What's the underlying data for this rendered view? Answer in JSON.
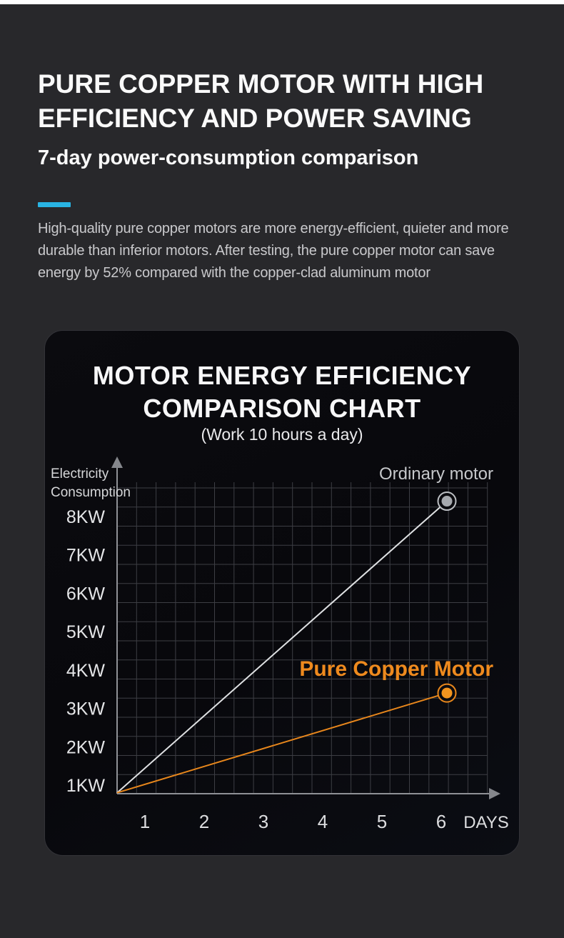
{
  "page": {
    "background_color": "#28282b",
    "top_strip_color": "#ffffff",
    "accent_color": "#29b4e3"
  },
  "header": {
    "title_line1": "PURE COPPER MOTOR WITH HIGH",
    "title_line2": "EFFICIENCY AND POWER SAVING",
    "subtitle": "7-day power-consumption comparison",
    "description_lines": [
      "High-quality pure copper motors are more energy-efficient, quieter and more",
      "durable than inferior motors. After testing, the pure copper motor can save",
      "energy by 52% compared with the copper-clad aluminum motor"
    ]
  },
  "chart_panel": {
    "title_line1": "MOTOR ENERGY EFFICIENCY",
    "title_line2": "COMPARISON CHART",
    "subtitle": "(Work 10 hours a day)",
    "background_color": "#0a0a0e"
  },
  "chart_data": {
    "type": "line",
    "title": "MOTOR ENERGY EFFICIENCY COMPARISON CHART",
    "subtitle": "(Work 10 hours a day)",
    "ylabel": "Electricity Consumption",
    "xlabel": "DAYS",
    "y_ticks": [
      "8KW",
      "7KW",
      "6KW",
      "5KW",
      "4KW",
      "3KW",
      "2KW",
      "1KW"
    ],
    "x_ticks": [
      "1",
      "2",
      "3",
      "4",
      "5",
      "6"
    ],
    "ylim_kw": [
      0,
      9
    ],
    "xlim_days": [
      0,
      7
    ],
    "grid": true,
    "axis_color": "#8f9196",
    "grid_color": "#3d3e44",
    "series": [
      {
        "name": "Ordinary motor",
        "color": "#dfe1e3",
        "label_color": "#c6c8cb",
        "marker_ring": "#bcbfc3",
        "marker_dot": "#a6a9ae",
        "points": [
          [
            0,
            0.8
          ],
          [
            6,
            8.4
          ]
        ]
      },
      {
        "name": "Pure Copper Motor",
        "color": "#e8871c",
        "label_color": "#ee8a1e",
        "marker_ring": "#e8871c",
        "marker_dot": "#f3951f",
        "points": [
          [
            0,
            0.8
          ],
          [
            6,
            3.4
          ]
        ]
      }
    ]
  }
}
